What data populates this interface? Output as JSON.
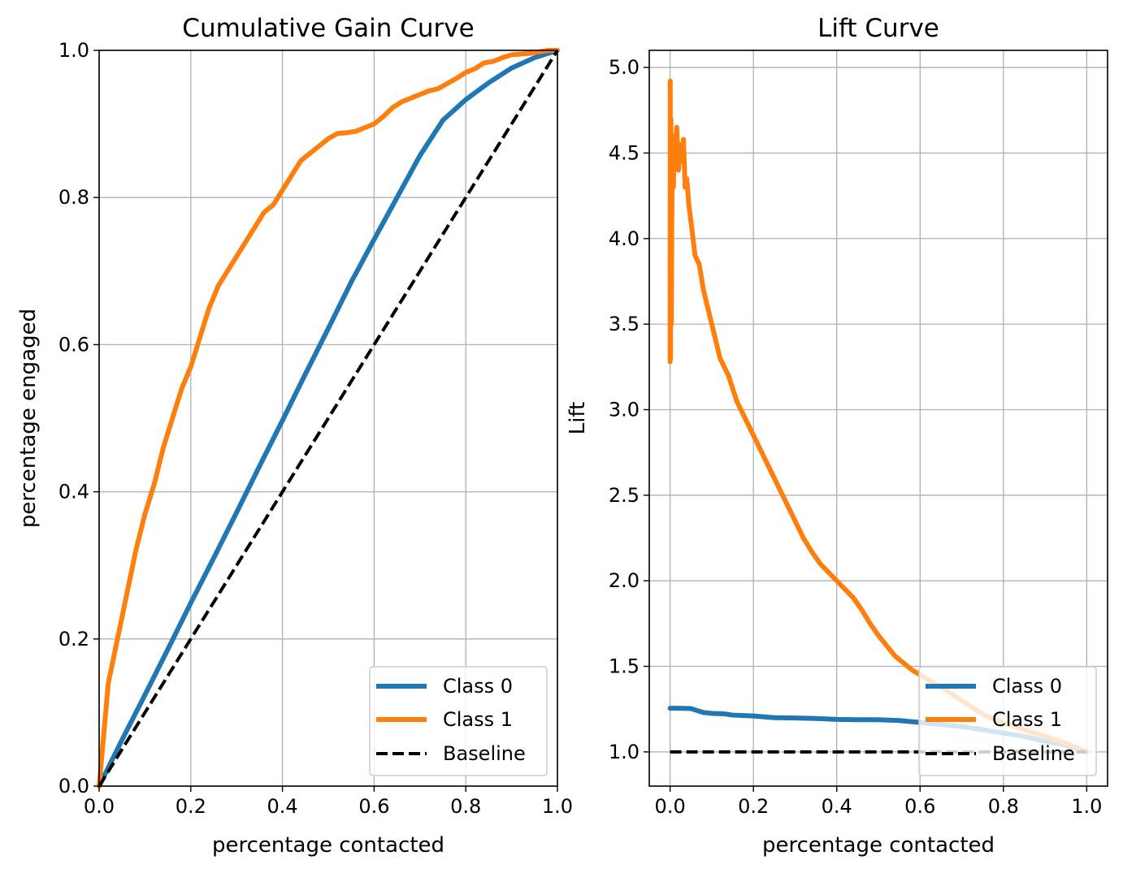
{
  "chart_data": [
    {
      "type": "line",
      "title": "Cumulative Gain Curve",
      "xlabel": "percentage contacted",
      "ylabel": "percentage engaged",
      "xlim": [
        0,
        1
      ],
      "ylim": [
        0,
        1
      ],
      "xticks": [
        0.0,
        0.2,
        0.4,
        0.6,
        0.8,
        1.0
      ],
      "xtick_labels": [
        "0.0",
        "0.2",
        "0.4",
        "0.6",
        "0.8",
        "1.0"
      ],
      "yticks": [
        0.0,
        0.2,
        0.4,
        0.6,
        0.8,
        1.0
      ],
      "ytick_labels": [
        "0.0",
        "0.2",
        "0.4",
        "0.6",
        "0.8",
        "1.0"
      ],
      "grid": true,
      "legend_position": "lower-right",
      "series": [
        {
          "name": "Class 0",
          "color": "#1f77b4",
          "style": "solid",
          "x": [
            0.0,
            0.05,
            0.1,
            0.15,
            0.2,
            0.25,
            0.3,
            0.35,
            0.4,
            0.45,
            0.5,
            0.55,
            0.6,
            0.65,
            0.7,
            0.75,
            0.8,
            0.85,
            0.9,
            0.95,
            1.0
          ],
          "y": [
            0.0,
            0.063,
            0.124,
            0.186,
            0.249,
            0.31,
            0.372,
            0.435,
            0.497,
            0.56,
            0.622,
            0.685,
            0.743,
            0.8,
            0.857,
            0.905,
            0.933,
            0.956,
            0.976,
            0.99,
            1.0
          ]
        },
        {
          "name": "Class 1",
          "color": "#ff7f0e",
          "style": "solid",
          "x": [
            0.0,
            0.01,
            0.02,
            0.04,
            0.06,
            0.08,
            0.1,
            0.12,
            0.14,
            0.16,
            0.18,
            0.2,
            0.22,
            0.24,
            0.26,
            0.28,
            0.3,
            0.32,
            0.34,
            0.36,
            0.38,
            0.4,
            0.42,
            0.44,
            0.46,
            0.48,
            0.5,
            0.52,
            0.54,
            0.56,
            0.58,
            0.6,
            0.62,
            0.64,
            0.66,
            0.68,
            0.7,
            0.72,
            0.74,
            0.76,
            0.78,
            0.8,
            0.82,
            0.84,
            0.86,
            0.88,
            0.9,
            0.92,
            0.94,
            0.96,
            0.98,
            1.0
          ],
          "y": [
            0.0,
            0.07,
            0.14,
            0.2,
            0.26,
            0.32,
            0.37,
            0.41,
            0.46,
            0.5,
            0.54,
            0.57,
            0.61,
            0.65,
            0.68,
            0.7,
            0.72,
            0.74,
            0.76,
            0.78,
            0.79,
            0.81,
            0.83,
            0.85,
            0.86,
            0.87,
            0.88,
            0.887,
            0.888,
            0.89,
            0.895,
            0.9,
            0.91,
            0.922,
            0.93,
            0.935,
            0.94,
            0.945,
            0.948,
            0.955,
            0.962,
            0.97,
            0.975,
            0.983,
            0.985,
            0.99,
            0.994,
            0.995,
            0.996,
            0.998,
            1.0,
            1.0
          ]
        },
        {
          "name": "Baseline",
          "color": "#000000",
          "style": "dashed",
          "x": [
            0.0,
            1.0
          ],
          "y": [
            0.0,
            1.0
          ]
        }
      ]
    },
    {
      "type": "line",
      "title": "Lift Curve",
      "xlabel": "percentage contacted",
      "ylabel": "Lift",
      "xlim": [
        -0.05,
        1.05
      ],
      "ylim": [
        0.8,
        5.1
      ],
      "xticks": [
        0.0,
        0.2,
        0.4,
        0.6,
        0.8,
        1.0
      ],
      "xtick_labels": [
        "0.0",
        "0.2",
        "0.4",
        "0.6",
        "0.8",
        "1.0"
      ],
      "yticks": [
        1.0,
        1.5,
        2.0,
        2.5,
        3.0,
        3.5,
        4.0,
        4.5,
        5.0
      ],
      "ytick_labels": [
        "1.0",
        "1.5",
        "2.0",
        "2.5",
        "3.0",
        "3.5",
        "4.0",
        "4.5",
        "5.0"
      ],
      "grid": true,
      "legend_position": "lower-right",
      "series": [
        {
          "name": "Class 0",
          "color": "#1f77b4",
          "style": "solid",
          "x": [
            0.0,
            0.02,
            0.05,
            0.08,
            0.1,
            0.13,
            0.15,
            0.2,
            0.25,
            0.3,
            0.35,
            0.4,
            0.45,
            0.5,
            0.55,
            0.6,
            0.65,
            0.7,
            0.75,
            0.8,
            0.85,
            0.9,
            0.95,
            1.0
          ],
          "y": [
            1.255,
            1.255,
            1.253,
            1.23,
            1.225,
            1.222,
            1.215,
            1.21,
            1.2,
            1.198,
            1.195,
            1.19,
            1.188,
            1.188,
            1.183,
            1.172,
            1.16,
            1.148,
            1.13,
            1.11,
            1.09,
            1.062,
            1.04,
            1.0
          ]
        },
        {
          "name": "Class 1",
          "color": "#ff7f0e",
          "style": "solid",
          "x": [
            0.0,
            0.0003,
            0.001,
            0.002,
            0.003,
            0.004,
            0.006,
            0.008,
            0.01,
            0.013,
            0.016,
            0.02,
            0.024,
            0.028,
            0.032,
            0.036,
            0.04,
            0.045,
            0.05,
            0.06,
            0.07,
            0.08,
            0.09,
            0.1,
            0.12,
            0.14,
            0.16,
            0.18,
            0.2,
            0.22,
            0.24,
            0.26,
            0.28,
            0.3,
            0.32,
            0.34,
            0.36,
            0.38,
            0.4,
            0.42,
            0.44,
            0.46,
            0.48,
            0.5,
            0.52,
            0.54,
            0.56,
            0.58,
            0.6,
            0.65,
            0.7,
            0.75,
            0.8,
            0.85,
            0.9,
            0.95,
            1.0
          ],
          "y": [
            3.28,
            4.92,
            3.3,
            4.7,
            3.5,
            4.1,
            4.5,
            4.3,
            4.6,
            4.45,
            4.65,
            4.4,
            4.55,
            4.45,
            4.58,
            4.3,
            4.35,
            4.2,
            4.1,
            3.9,
            3.85,
            3.7,
            3.6,
            3.5,
            3.3,
            3.2,
            3.05,
            2.95,
            2.85,
            2.75,
            2.65,
            2.55,
            2.45,
            2.35,
            2.25,
            2.17,
            2.1,
            2.05,
            2.0,
            1.95,
            1.9,
            1.83,
            1.75,
            1.68,
            1.62,
            1.56,
            1.52,
            1.48,
            1.45,
            1.38,
            1.3,
            1.22,
            1.17,
            1.13,
            1.09,
            1.05,
            1.0
          ]
        },
        {
          "name": "Baseline",
          "color": "#000000",
          "style": "dashed",
          "x": [
            0.0,
            1.0
          ],
          "y": [
            1.0,
            1.0
          ]
        }
      ]
    }
  ]
}
